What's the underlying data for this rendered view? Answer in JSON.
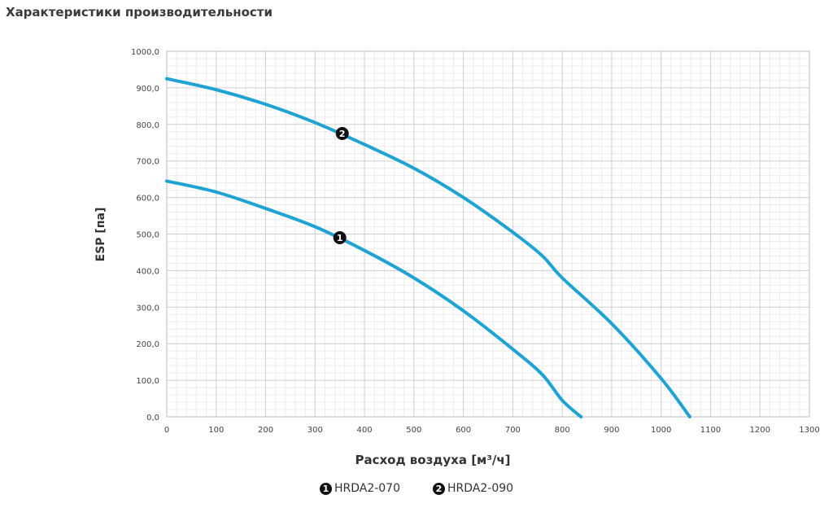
{
  "page": {
    "title": "Характеристики производительности"
  },
  "chart_data": {
    "type": "line",
    "xlabel": "Расход воздуха [м³/ч]",
    "ylabel": "ESP  [па]",
    "xlim": [
      0,
      1300
    ],
    "ylim": [
      0,
      1000
    ],
    "x_ticks": [
      "0",
      "100",
      "200",
      "300",
      "400",
      "500",
      "600",
      "700",
      "800",
      "900",
      "1000",
      "1100",
      "1200",
      "1300"
    ],
    "y_ticks": [
      "0,0",
      "100,0",
      "200,0",
      "300,0",
      "400,0",
      "500,0",
      "600,0",
      "700,0",
      "800,0",
      "900,0",
      "1000,0"
    ],
    "grid": true,
    "legend_position": "bottom",
    "line_color": "#1fa3d4",
    "series": [
      {
        "name": "HRDA2-070",
        "marker": "1",
        "marker_at": [
          350,
          490
        ],
        "points": [
          [
            0,
            645
          ],
          [
            100,
            615
          ],
          [
            200,
            570
          ],
          [
            300,
            520
          ],
          [
            400,
            455
          ],
          [
            500,
            380
          ],
          [
            600,
            290
          ],
          [
            700,
            185
          ],
          [
            760,
            115
          ],
          [
            800,
            45
          ],
          [
            838,
            0
          ]
        ]
      },
      {
        "name": "HRDA2-090",
        "marker": "2",
        "marker_at": [
          355,
          775
        ],
        "points": [
          [
            0,
            925
          ],
          [
            100,
            895
          ],
          [
            200,
            855
          ],
          [
            300,
            805
          ],
          [
            400,
            745
          ],
          [
            500,
            680
          ],
          [
            600,
            600
          ],
          [
            700,
            505
          ],
          [
            760,
            440
          ],
          [
            800,
            380
          ],
          [
            900,
            255
          ],
          [
            1000,
            105
          ],
          [
            1058,
            0
          ]
        ]
      }
    ]
  }
}
